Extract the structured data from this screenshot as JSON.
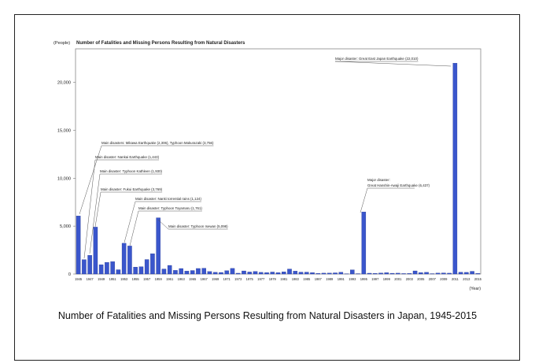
{
  "caption": "Number of Fatalities and Missing Persons Resulting from Natural Disasters in Japan, 1945-2015",
  "chart_data": {
    "type": "bar",
    "title": "Number of Fatalities and Missing Persons Resulting from Natural Disasters",
    "ylabel_unit": "(People)",
    "xlabel_unit": "(Year)",
    "ylim": [
      0,
      23500
    ],
    "yticks": [
      0,
      5000,
      10000,
      15000,
      20000
    ],
    "ytick_labels": [
      "0",
      "5,000",
      "10,000",
      "15,000",
      "20,000"
    ],
    "bar_color": "#3a56cc",
    "categories": [
      "1945",
      "1946",
      "1947",
      "1948",
      "1949",
      "1950",
      "1951",
      "1952",
      "1953",
      "1954",
      "1955",
      "1956",
      "1957",
      "1958",
      "1959",
      "1960",
      "1961",
      "1962",
      "1963",
      "1964",
      "1965",
      "1966",
      "1967",
      "1968",
      "1969",
      "1970",
      "1971",
      "1972",
      "1973",
      "1974",
      "1975",
      "1976",
      "1977",
      "1978",
      "1979",
      "1980",
      "1981",
      "1982",
      "1983",
      "1984",
      "1985",
      "1986",
      "1987",
      "1988",
      "1989",
      "1990",
      "1991",
      "1992",
      "1993",
      "1994",
      "1995",
      "1996",
      "1997",
      "1998",
      "1999",
      "2000",
      "2001",
      "2002",
      "2003",
      "2004",
      "2005",
      "2006",
      "2007",
      "2008",
      "2009",
      "2010",
      "2011",
      "2012",
      "2013",
      "2014",
      "2015"
    ],
    "values": [
      6062,
      1504,
      1950,
      4897,
      975,
      1210,
      1291,
      449,
      3212,
      2926,
      727,
      765,
      1515,
      2120,
      5868,
      528,
      902,
      381,
      575,
      307,
      367,
      578,
      607,
      259,
      183,
      163,
      350,
      587,
      85,
      324,
      213,
      273,
      174,
      153,
      208,
      148,
      232,
      524,
      301,
      199,
      199,
      148,
      69,
      93,
      96,
      123,
      190,
      19,
      438,
      39,
      6482,
      84,
      71,
      109,
      141,
      78,
      90,
      48,
      62,
      327,
      153,
      177,
      39,
      100,
      115,
      89,
      22000,
      192,
      173,
      283,
      65
    ],
    "tick_labels": [
      "1945",
      "1947",
      "1949",
      "1951",
      "1953",
      "1955",
      "1957",
      "1959",
      "1961",
      "1963",
      "1965",
      "1967",
      "1969",
      "1971",
      "1973",
      "1975",
      "1977",
      "1979",
      "1981",
      "1983",
      "1985",
      "1987",
      "1989",
      "1991",
      "1993",
      "1995",
      "1997",
      "1999",
      "2001",
      "2003",
      "2005",
      "2007",
      "2009",
      "2011",
      "2013",
      "2015"
    ],
    "annotations": [
      {
        "text": "Main disasters: Mikawa Earthquake (2,306), Typhoon Makurazaki (3,756)",
        "year": "1945"
      },
      {
        "text": "Main disaster: Nankai Earthquake (1,443)",
        "year": "1946"
      },
      {
        "text": "Main disaster: Typhoon Kathleen (1,930)",
        "year": "1947"
      },
      {
        "text": "Main disaster: Fukui Earthquake (3,769)",
        "year": "1948"
      },
      {
        "text": "Main disaster: Nanki torrential rains (1,124)",
        "year": "1953"
      },
      {
        "text": "Main disaster: Typhoon Toyamaru (1,761)",
        "year": "1954"
      },
      {
        "text": "Main disaster: Typhoon Isewan (5,098)",
        "year": "1959"
      },
      {
        "text": "Major disaster:",
        "text2": "Great Hanshin-Awaji Earthquake (6,437)",
        "year": "1995"
      },
      {
        "text": "Major disaster: Great East Japan Earthquake (22,010)",
        "year": "2011"
      }
    ]
  }
}
